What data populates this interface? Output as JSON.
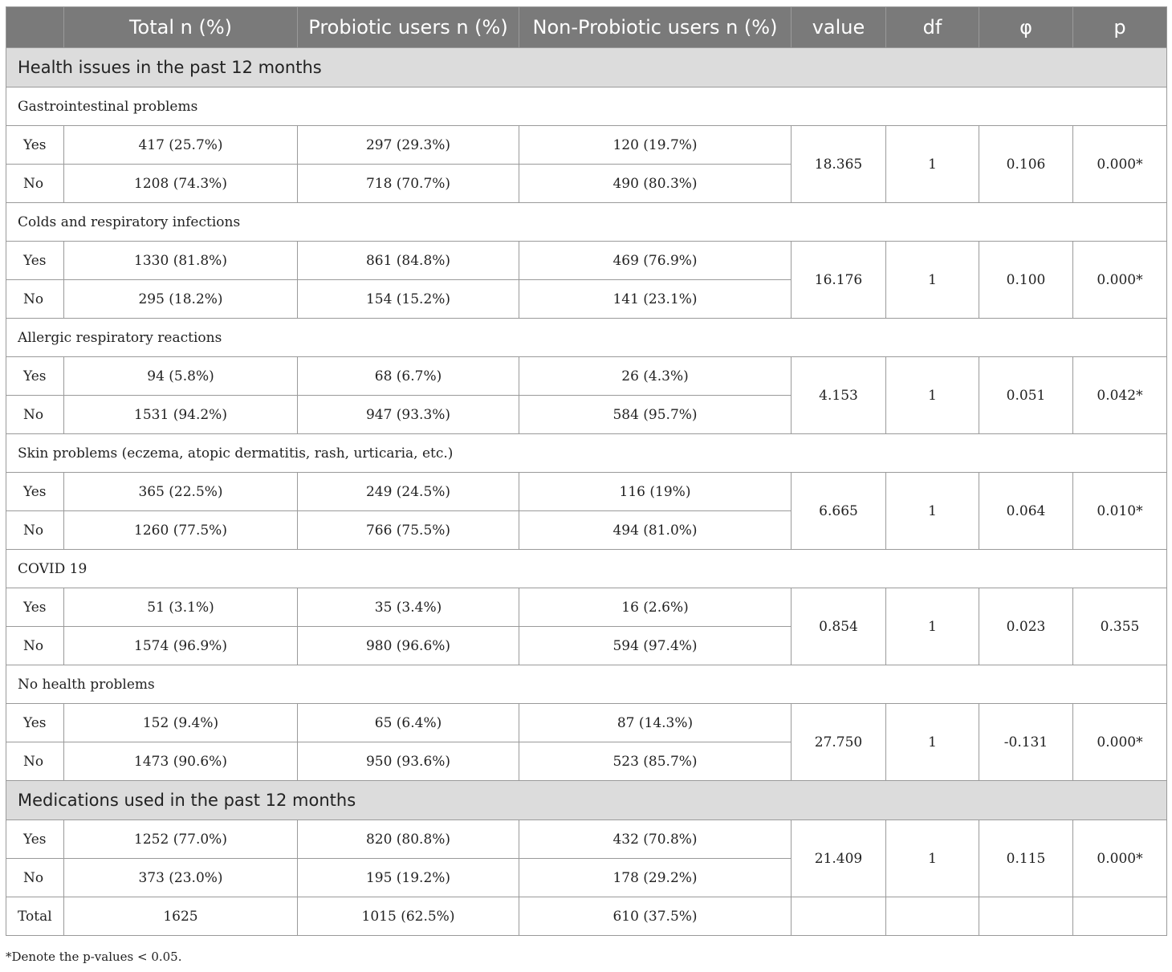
{
  "columns": [
    "",
    "Total n (%)",
    "Probiotic users n (%)",
    "Non-Probiotic users n (%)",
    "value",
    "df",
    "φ",
    "p"
  ],
  "sections": [
    {
      "title": "Health issues in the past 12 months",
      "groups": [
        {
          "label": "Gastrointestinal problems",
          "rows": [
            {
              "label": "Yes",
              "total": "417 (25.7%)",
              "probiotic": "297 (29.3%)",
              "non_probiotic": "120 (19.7%)"
            },
            {
              "label": "No",
              "total": "1208 (74.3%)",
              "probiotic": "718 (70.7%)",
              "non_probiotic": "490 (80.3%)"
            }
          ],
          "value": "18.365",
          "df": "1",
          "phi": "0.106",
          "p": "0.000*"
        },
        {
          "label": "Colds and respiratory infections",
          "rows": [
            {
              "label": "Yes",
              "total": "1330 (81.8%)",
              "probiotic": "861 (84.8%)",
              "non_probiotic": "469 (76.9%)"
            },
            {
              "label": "No",
              "total": "295 (18.2%)",
              "probiotic": "154 (15.2%)",
              "non_probiotic": "141 (23.1%)"
            }
          ],
          "value": "16.176",
          "df": "1",
          "phi": "0.100",
          "p": "0.000*"
        },
        {
          "label": "Allergic respiratory reactions",
          "rows": [
            {
              "label": "Yes",
              "total": "94 (5.8%)",
              "probiotic": "68 (6.7%)",
              "non_probiotic": "26 (4.3%)"
            },
            {
              "label": "No",
              "total": "1531 (94.2%)",
              "probiotic": "947 (93.3%)",
              "non_probiotic": "584 (95.7%)"
            }
          ],
          "value": "4.153",
          "df": "1",
          "phi": "0.051",
          "p": "0.042*"
        },
        {
          "label": "Skin problems (eczema, atopic dermatitis, rash, urticaria, etc.)",
          "rows": [
            {
              "label": "Yes",
              "total": "365 (22.5%)",
              "probiotic": "249 (24.5%)",
              "non_probiotic": "116 (19%)"
            },
            {
              "label": "No",
              "total": "1260 (77.5%)",
              "probiotic": "766 (75.5%)",
              "non_probiotic": "494 (81.0%)"
            }
          ],
          "value": "6.665",
          "df": "1",
          "phi": "0.064",
          "p": "0.010*"
        },
        {
          "label": "COVID 19",
          "rows": [
            {
              "label": "Yes",
              "total": "51 (3.1%)",
              "probiotic": "35 (3.4%)",
              "non_probiotic": "16 (2.6%)"
            },
            {
              "label": "No",
              "total": "1574 (96.9%)",
              "probiotic": "980 (96.6%)",
              "non_probiotic": "594 (97.4%)"
            }
          ],
          "value": "0.854",
          "df": "1",
          "phi": "0.023",
          "p": "0.355"
        },
        {
          "label": "No health problems",
          "rows": [
            {
              "label": "Yes",
              "total": "152 (9.4%)",
              "probiotic": "65 (6.4%)",
              "non_probiotic": "87 (14.3%)"
            },
            {
              "label": "No",
              "total": "1473 (90.6%)",
              "probiotic": "950 (93.6%)",
              "non_probiotic": "523 (85.7%)"
            }
          ],
          "value": "27.750",
          "df": "1",
          "phi": "-0.131",
          "p": "0.000*"
        }
      ]
    },
    {
      "title": "Medications used in the past 12 months",
      "groups": [
        {
          "label": "",
          "rows": [
            {
              "label": "Yes",
              "total": "1252 (77.0%)",
              "probiotic": "820 (80.8%)",
              "non_probiotic": "432 (70.8%)"
            },
            {
              "label": "No",
              "total": "373 (23.0%)",
              "probiotic": "195 (19.2%)",
              "non_probiotic": "178 (29.2%)"
            }
          ],
          "value": "21.409",
          "df": "1",
          "phi": "0.115",
          "p": "0.000*"
        }
      ]
    }
  ],
  "total_row": {
    "label": "Total",
    "total": "1625",
    "probiotic": "1015 (62.5%)",
    "non_probiotic": "610 (37.5%)"
  },
  "footnote": "*Denote the p-values < 0.05."
}
